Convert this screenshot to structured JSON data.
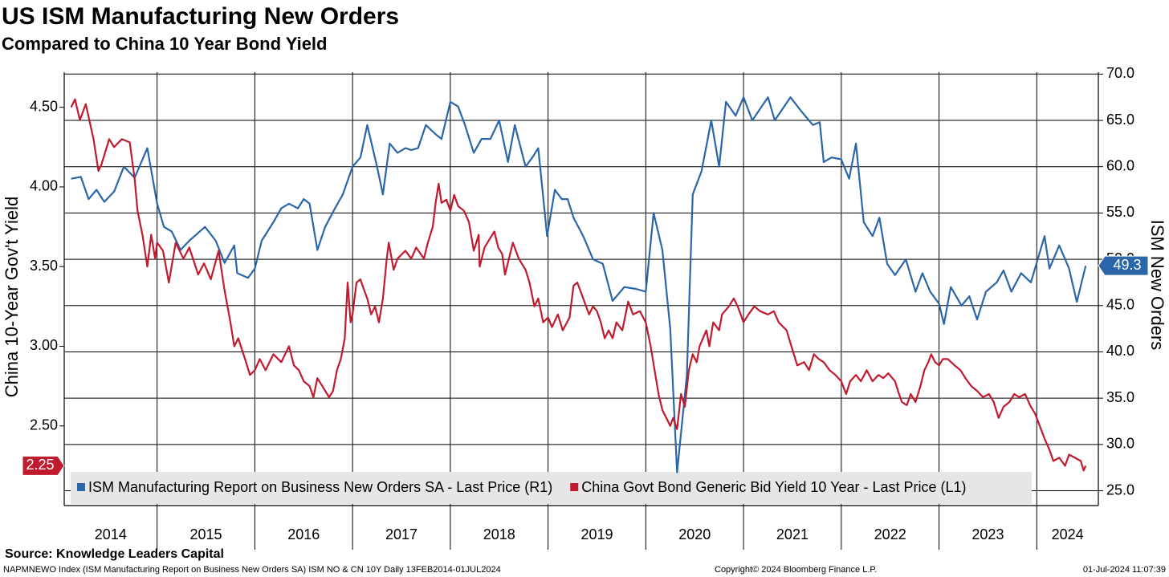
{
  "chart_data": {
    "type": "line",
    "title": "US ISM Manufacturing New Orders",
    "subtitle": "Compared to China 10 Year Bond Yield",
    "y_label": "China 10-Year Gov't Yield",
    "y2_label": "ISM New Orders",
    "source": "Source: Knowledge Leaders Capital",
    "footer_left": "NAPMNEWO Index (ISM Manufacturing Report on Business New Orders SA) ISM NO & CN 10Y  Daily 13FEB2014-01JUL2024",
    "footer_center": "Copyright© 2024 Bloomberg Finance L.P.",
    "footer_right": "01-Jul-2024 11:07:39",
    "xlim": [
      2014.05,
      2024.63
    ],
    "xticks": [
      2014,
      2015,
      2016,
      2017,
      2018,
      2019,
      2020,
      2021,
      2022,
      2023,
      2024
    ],
    "ylim": [
      2.0,
      4.72
    ],
    "yticks": [
      {
        "value": 2.5,
        "label": "2.50"
      },
      {
        "value": 3,
        "label": "3.00"
      },
      {
        "value": 3.5,
        "label": "3.50"
      },
      {
        "value": 4,
        "label": "4.00"
      },
      {
        "value": 4.5,
        "label": "4.50"
      }
    ],
    "y2lim": [
      23.4,
      70.2
    ],
    "y2ticks": [
      {
        "value": 25,
        "label": "25.0"
      },
      {
        "value": 30,
        "label": "30.0"
      },
      {
        "value": 35,
        "label": "35.0"
      },
      {
        "value": 40,
        "label": "40.0"
      },
      {
        "value": 45,
        "label": "45.0"
      },
      {
        "value": 50,
        "label": "50.0"
      },
      {
        "value": 55,
        "label": "55.0"
      },
      {
        "value": 60,
        "label": "60.0"
      },
      {
        "value": 65,
        "label": "65.0"
      },
      {
        "value": 70,
        "label": "70.0"
      }
    ],
    "grid": true,
    "legend": "bottom-left",
    "last_value_tags": true,
    "series": [
      {
        "name": "ISM Manufacturing Report on Business New Orders SA - Last Price (R1)",
        "color": "#2a66a8",
        "axis": "y2",
        "x": [
          2014.12,
          2014.22,
          2014.3,
          2014.38,
          2014.46,
          2014.56,
          2014.66,
          2014.77,
          2014.9,
          2015.0,
          2015.07,
          2015.15,
          2015.24,
          2015.33,
          2015.49,
          2015.6,
          2015.69,
          2015.79,
          2015.82,
          2015.93,
          2016.0,
          2016.07,
          2016.19,
          2016.27,
          2016.35,
          2016.44,
          2016.5,
          2016.56,
          2016.64,
          2016.72,
          2016.82,
          2016.9,
          2017.0,
          2017.08,
          2017.15,
          2017.25,
          2017.31,
          2017.38,
          2017.46,
          2017.54,
          2017.6,
          2017.67,
          2017.75,
          2017.85,
          2017.91,
          2018.0,
          2018.08,
          2018.15,
          2018.24,
          2018.32,
          2018.41,
          2018.5,
          2018.59,
          2018.66,
          2018.77,
          2018.84,
          2018.9,
          2018.99,
          2019.07,
          2019.14,
          2019.2,
          2019.26,
          2019.36,
          2019.46,
          2019.56,
          2019.66,
          2019.78,
          2019.9,
          2020.0,
          2020.08,
          2020.17,
          2020.25,
          2020.32,
          2020.42,
          2020.48,
          2020.57,
          2020.67,
          2020.75,
          2020.82,
          2020.92,
          2021.0,
          2021.09,
          2021.25,
          2021.32,
          2021.48,
          2021.59,
          2021.71,
          2021.78,
          2021.82,
          2021.9,
          2022.0,
          2022.08,
          2022.15,
          2022.23,
          2022.32,
          2022.39,
          2022.47,
          2022.55,
          2022.66,
          2022.76,
          2022.83,
          2022.91,
          2023.0,
          2023.05,
          2023.12,
          2023.23,
          2023.31,
          2023.39,
          2023.48,
          2023.59,
          2023.66,
          2023.74,
          2023.84,
          2023.94,
          2024.08,
          2024.13,
          2024.23,
          2024.33,
          2024.41,
          2024.5
        ],
        "values": [
          58.7,
          58.9,
          56.5,
          57.5,
          56.2,
          57.3,
          60.0,
          58.8,
          62.0,
          56.0,
          53.5,
          53.0,
          51.0,
          52.0,
          53.5,
          52.0,
          49.6,
          51.5,
          48.5,
          48.0,
          49.0,
          52.0,
          54.0,
          55.5,
          56.0,
          55.5,
          56.5,
          56.0,
          51.0,
          53.5,
          55.5,
          57.0,
          60.0,
          61.0,
          64.5,
          60.0,
          57.0,
          62.5,
          61.5,
          62.0,
          61.8,
          62.0,
          64.5,
          63.5,
          63.0,
          67.0,
          66.5,
          64.5,
          61.5,
          63.0,
          63.0,
          65.0,
          60.5,
          64.5,
          60.0,
          61.0,
          62.0,
          52.5,
          57.5,
          56.5,
          56.5,
          54.5,
          52.5,
          50.0,
          49.5,
          45.5,
          47.0,
          46.8,
          46.5,
          55.0,
          51.0,
          42.5,
          27.0,
          37.5,
          57.0,
          59.5,
          65.0,
          60.0,
          67.0,
          65.5,
          67.5,
          65.0,
          67.5,
          65.0,
          67.5,
          66.0,
          64.5,
          64.8,
          60.5,
          61.0,
          60.8,
          58.7,
          62.5,
          54.0,
          52.5,
          54.5,
          49.5,
          48.3,
          50.0,
          46.5,
          48.5,
          46.5,
          45.2,
          43.0,
          47.0,
          45.0,
          46.0,
          43.5,
          46.5,
          47.5,
          48.8,
          46.5,
          48.5,
          47.5,
          52.5,
          49.0,
          51.5,
          49.0,
          45.4,
          49.3
        ]
      },
      {
        "name": "China Govt Bond Generic Bid Yield 10 Year - Last Price (L1)",
        "color": "#c01a2e",
        "axis": "y",
        "x": [
          2014.12,
          2014.16,
          2014.21,
          2014.27,
          2014.35,
          2014.4,
          2014.43,
          2014.51,
          2014.56,
          2014.64,
          2014.72,
          2014.77,
          2014.8,
          2014.85,
          2014.9,
          2014.94,
          2014.98,
          2015.0,
          2015.06,
          2015.12,
          2015.19,
          2015.27,
          2015.33,
          2015.42,
          2015.48,
          2015.55,
          2015.63,
          2015.69,
          2015.75,
          2015.79,
          2015.83,
          2015.9,
          2015.95,
          2016.0,
          2016.05,
          2016.11,
          2016.19,
          2016.27,
          2016.35,
          2016.4,
          2016.45,
          2016.5,
          2016.56,
          2016.6,
          2016.64,
          2016.69,
          2016.76,
          2016.8,
          2016.84,
          2016.88,
          2016.92,
          2016.95,
          2016.98,
          2017.0,
          2017.04,
          2017.08,
          2017.12,
          2017.15,
          2017.19,
          2017.23,
          2017.27,
          2017.31,
          2017.35,
          2017.37,
          2017.42,
          2017.46,
          2017.54,
          2017.6,
          2017.65,
          2017.73,
          2017.77,
          2017.82,
          2017.85,
          2017.88,
          2017.91,
          2017.96,
          2018.0,
          2018.04,
          2018.08,
          2018.14,
          2018.19,
          2018.24,
          2018.29,
          2018.3,
          2018.35,
          2018.39,
          2018.45,
          2018.49,
          2018.53,
          2018.56,
          2018.6,
          2018.64,
          2018.7,
          2018.77,
          2018.81,
          2018.86,
          2018.9,
          2018.95,
          2019.0,
          2019.04,
          2019.1,
          2019.15,
          2019.22,
          2019.26,
          2019.3,
          2019.36,
          2019.42,
          2019.46,
          2019.5,
          2019.54,
          2019.58,
          2019.62,
          2019.66,
          2019.7,
          2019.76,
          2019.82,
          2019.87,
          2019.94,
          2020.0,
          2020.05,
          2020.09,
          2020.13,
          2020.17,
          2020.21,
          2020.25,
          2020.28,
          2020.32,
          2020.36,
          2020.4,
          2020.44,
          2020.48,
          2020.52,
          2020.55,
          2020.62,
          2020.65,
          2020.69,
          2020.75,
          2020.78,
          2020.85,
          2020.9,
          2020.94,
          2021.0,
          2021.05,
          2021.11,
          2021.17,
          2021.25,
          2021.31,
          2021.36,
          2021.44,
          2021.49,
          2021.55,
          2021.62,
          2021.67,
          2021.72,
          2021.77,
          2021.82,
          2021.88,
          2021.94,
          2022.0,
          2022.05,
          2022.09,
          2022.15,
          2022.2,
          2022.26,
          2022.32,
          2022.38,
          2022.43,
          2022.48,
          2022.55,
          2022.58,
          2022.62,
          2022.67,
          2022.71,
          2022.76,
          2022.81,
          2022.85,
          2022.89,
          2022.92,
          2022.96,
          2023.0,
          2023.04,
          2023.09,
          2023.16,
          2023.22,
          2023.27,
          2023.33,
          2023.39,
          2023.45,
          2023.51,
          2023.56,
          2023.61,
          2023.66,
          2023.72,
          2023.77,
          2023.82,
          2023.88,
          2023.94,
          2023.98,
          2024.03,
          2024.08,
          2024.13,
          2024.17,
          2024.23,
          2024.29,
          2024.33,
          2024.39,
          2024.45,
          2024.48,
          2024.5
        ],
        "values": [
          4.5,
          4.55,
          4.42,
          4.52,
          4.3,
          4.1,
          4.14,
          4.3,
          4.25,
          4.3,
          4.28,
          4.05,
          3.85,
          3.7,
          3.5,
          3.7,
          3.55,
          3.65,
          3.6,
          3.4,
          3.65,
          3.55,
          3.62,
          3.45,
          3.52,
          3.42,
          3.6,
          3.35,
          3.15,
          3.0,
          3.05,
          2.92,
          2.82,
          2.85,
          2.92,
          2.85,
          2.95,
          2.9,
          3.0,
          2.88,
          2.85,
          2.78,
          2.75,
          2.68,
          2.8,
          2.75,
          2.68,
          2.72,
          2.85,
          2.92,
          3.05,
          3.4,
          3.15,
          3.2,
          3.4,
          3.42,
          3.35,
          3.3,
          3.2,
          3.25,
          3.15,
          3.3,
          3.55,
          3.65,
          3.48,
          3.55,
          3.6,
          3.55,
          3.62,
          3.55,
          3.65,
          3.75,
          3.9,
          4.02,
          3.9,
          3.92,
          3.85,
          3.95,
          3.88,
          3.85,
          3.78,
          3.6,
          3.7,
          3.5,
          3.62,
          3.66,
          3.72,
          3.62,
          3.58,
          3.45,
          3.55,
          3.65,
          3.55,
          3.48,
          3.4,
          3.25,
          3.3,
          3.15,
          3.18,
          3.12,
          3.2,
          3.1,
          3.18,
          3.38,
          3.4,
          3.3,
          3.2,
          3.25,
          3.22,
          3.15,
          3.05,
          3.1,
          3.05,
          3.15,
          3.1,
          3.28,
          3.2,
          3.22,
          3.15,
          3.0,
          2.85,
          2.7,
          2.6,
          2.55,
          2.5,
          2.55,
          2.48,
          2.7,
          2.62,
          2.85,
          2.95,
          2.9,
          3.0,
          3.1,
          3.0,
          3.15,
          3.1,
          3.2,
          3.25,
          3.3,
          3.25,
          3.15,
          3.2,
          3.25,
          3.22,
          3.2,
          3.22,
          3.15,
          3.1,
          3.0,
          2.88,
          2.9,
          2.85,
          2.95,
          2.92,
          2.9,
          2.85,
          2.82,
          2.78,
          2.7,
          2.78,
          2.82,
          2.78,
          2.85,
          2.78,
          2.82,
          2.8,
          2.83,
          2.78,
          2.72,
          2.65,
          2.63,
          2.7,
          2.65,
          2.75,
          2.85,
          2.9,
          2.95,
          2.9,
          2.88,
          2.92,
          2.92,
          2.88,
          2.85,
          2.8,
          2.75,
          2.72,
          2.68,
          2.7,
          2.65,
          2.55,
          2.62,
          2.65,
          2.7,
          2.68,
          2.7,
          2.62,
          2.58,
          2.5,
          2.42,
          2.35,
          2.28,
          2.3,
          2.25,
          2.32,
          2.3,
          2.28,
          2.22,
          2.25
        ]
      }
    ]
  }
}
